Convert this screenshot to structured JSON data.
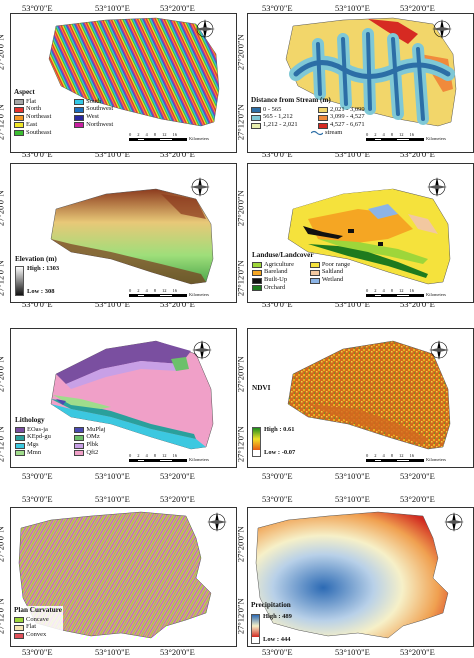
{
  "axes": {
    "lon_top": [
      "53°0'0\"E",
      "53°10'0\"E",
      "53°20'0\"E"
    ],
    "lon_bottom": [
      "53°0'0\"E",
      "53°10'0\"E",
      "53°20'0\"E"
    ],
    "lat": [
      "27°20'0\"N",
      "27°12'0\"N"
    ]
  },
  "scalebar": {
    "ticks": [
      "0",
      "2",
      "4",
      "8",
      "12",
      "16"
    ],
    "unit": "Kilometers"
  },
  "compass": {
    "north": "N"
  },
  "panels": {
    "aspect": {
      "title": "Aspect",
      "classes": [
        {
          "label": "Flat",
          "color": "#a6a6a6"
        },
        {
          "label": "South",
          "color": "#32c8e6"
        },
        {
          "label": "North",
          "color": "#e6322d"
        },
        {
          "label": "Southwest",
          "color": "#1e6ebe"
        },
        {
          "label": "Northeast",
          "color": "#f59a28"
        },
        {
          "label": "West",
          "color": "#2828a0"
        },
        {
          "label": "East",
          "color": "#f0e628"
        },
        {
          "label": "Northwest",
          "color": "#c81ea0"
        },
        {
          "label": "Southeast",
          "color": "#3cbe32"
        }
      ]
    },
    "stream": {
      "title": "Distance from Stream (m)",
      "classes": [
        {
          "label": "0 - 565",
          "color": "#2c6ea6"
        },
        {
          "label": "2,021 - 3,099",
          "color": "#f2d66a"
        },
        {
          "label": "565 - 1,212",
          "color": "#7fc8d6"
        },
        {
          "label": "3,099 - 4,527",
          "color": "#f08a3c"
        },
        {
          "label": "1,212 - 2,021",
          "color": "#e9efb0"
        },
        {
          "label": "4,527 - 6,671",
          "color": "#d62a22"
        }
      ],
      "stream_label": "stream"
    },
    "elevation": {
      "title": "Elevation (m)",
      "high": "High : 1303",
      "low": "Low : 308"
    },
    "landuse": {
      "title": "Landuse/Landcover",
      "classes": [
        {
          "label": "Agriculture",
          "color": "#9ed63a"
        },
        {
          "label": "Poor range",
          "color": "#f5e23c"
        },
        {
          "label": "Bareland",
          "color": "#f5a623"
        },
        {
          "label": "Saltland",
          "color": "#f2c8a0"
        },
        {
          "label": "Built-Up",
          "color": "#111111"
        },
        {
          "label": "Wetland",
          "color": "#8cb4e6"
        },
        {
          "label": "Orchard",
          "color": "#1e7a1e"
        }
      ]
    },
    "lithology": {
      "title": "Lithology",
      "classes": [
        {
          "label": "EOas-ja",
          "color": "#7a4fa0"
        },
        {
          "label": "MuPlaj",
          "color": "#4a4ab0"
        },
        {
          "label": "KEpd-gu",
          "color": "#2aa09c"
        },
        {
          "label": "OMz",
          "color": "#6cc06a"
        },
        {
          "label": "Mgs",
          "color": "#3cc8e0"
        },
        {
          "label": "Plbk",
          "color": "#c8a0e6"
        },
        {
          "label": "Mmn",
          "color": "#a0dc8c"
        },
        {
          "label": "Qft2",
          "color": "#f0a0c8"
        }
      ]
    },
    "ndvi": {
      "title": "NDVI",
      "high": "High : 0.61",
      "low": "Low : -0.07"
    },
    "curvature": {
      "title": "Plan Curvature",
      "classes": [
        {
          "label": "Concave",
          "color": "#9ed63a"
        },
        {
          "label": "Flat",
          "color": "#f5e6b4"
        },
        {
          "label": "Convex",
          "color": "#e0505a"
        }
      ]
    },
    "precipitation": {
      "title": "Precipitation",
      "high": "High : 489",
      "low": "Low : 444"
    }
  }
}
